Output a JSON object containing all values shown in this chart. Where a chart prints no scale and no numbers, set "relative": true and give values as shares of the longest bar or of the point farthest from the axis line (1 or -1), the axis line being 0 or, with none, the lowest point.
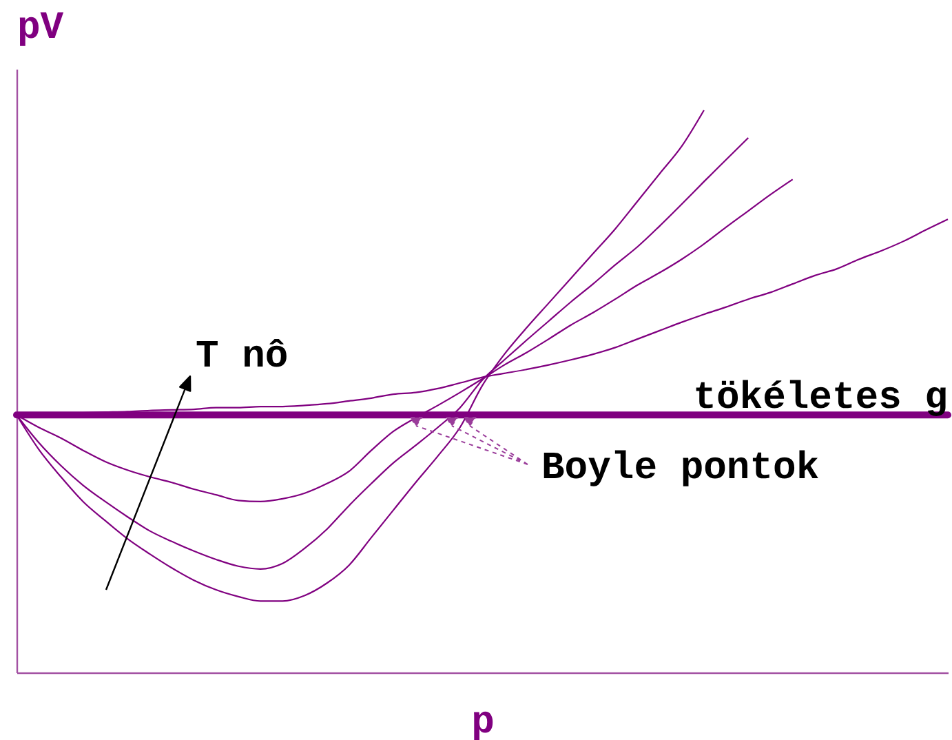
{
  "chart_data": {
    "type": "line",
    "relative": true,
    "xlabel": "p",
    "ylabel": "pV",
    "categories": [
      null,
      null,
      null,
      null,
      null,
      null,
      null,
      null,
      null,
      null,
      null,
      null,
      null,
      null,
      null,
      null,
      null,
      null,
      null,
      null,
      null,
      null,
      null,
      null,
      null,
      null,
      null,
      null,
      null,
      null,
      null,
      null,
      null,
      null,
      null,
      null,
      null,
      null,
      null,
      null,
      null,
      null,
      null
    ],
    "series": [
      {
        "color": "#800080",
        "values": [
          0.458,
          0.397,
          0.348,
          0.304,
          0.27,
          0.238,
          0.211,
          0.186,
          0.164,
          0.147,
          0.135,
          0.127,
          0.127,
          0.137,
          0.159,
          0.191,
          0.24,
          0.289,
          0.338,
          0.385,
          0.436,
          0.51,
          0.566,
          0.613,
          0.657,
          0.701,
          0.745,
          0.789,
          0.838,
          0.887,
          0.936,
          1.0,
          null,
          null,
          null,
          null,
          null,
          null,
          null,
          null,
          null,
          null,
          null
        ]
      },
      {
        "color": "#800080",
        "values": [
          0.458,
          0.409,
          0.368,
          0.333,
          0.304,
          0.277,
          0.252,
          0.233,
          0.216,
          0.201,
          0.189,
          0.184,
          0.194,
          0.221,
          0.255,
          0.297,
          0.336,
          0.373,
          0.404,
          0.436,
          0.471,
          0.52,
          0.556,
          0.591,
          0.625,
          0.659,
          0.691,
          0.725,
          0.757,
          0.794,
          0.833,
          0.873,
          0.912,
          0.951,
          null,
          null,
          null,
          null,
          null,
          null,
          null,
          null,
          null
        ]
      },
      {
        "color": "#800080",
        "values": [
          0.458,
          0.436,
          0.417,
          0.395,
          0.375,
          0.36,
          0.348,
          0.338,
          0.326,
          0.316,
          0.306,
          0.304,
          0.309,
          0.319,
          0.336,
          0.358,
          0.395,
          0.429,
          0.453,
          0.475,
          0.498,
          0.522,
          0.547,
          0.569,
          0.593,
          0.618,
          0.64,
          0.664,
          0.689,
          0.711,
          0.735,
          0.762,
          0.792,
          0.821,
          0.85,
          0.877,
          null,
          null,
          null,
          null,
          null,
          null,
          null
        ]
      },
      {
        "color": "#800080",
        "values": [
          0.458,
          0.46,
          0.461,
          0.462,
          0.463,
          0.464,
          0.466,
          0.467,
          0.468,
          0.471,
          0.471,
          0.473,
          0.473,
          0.475,
          0.478,
          0.483,
          0.488,
          0.495,
          0.498,
          0.505,
          0.515,
          0.525,
          0.532,
          0.539,
          0.547,
          0.556,
          0.566,
          0.578,
          0.593,
          0.608,
          0.623,
          0.637,
          0.65,
          0.664,
          0.676,
          0.691,
          0.706,
          0.718,
          0.735,
          0.75,
          0.767,
          0.787,
          0.806
        ]
      }
    ],
    "ref_lines": [
      {
        "axis": "y",
        "value": 0.458,
        "label": "tökéletes g",
        "color": "#800080"
      }
    ],
    "annotations": [
      "T nô",
      "Boyle pontok"
    ]
  }
}
